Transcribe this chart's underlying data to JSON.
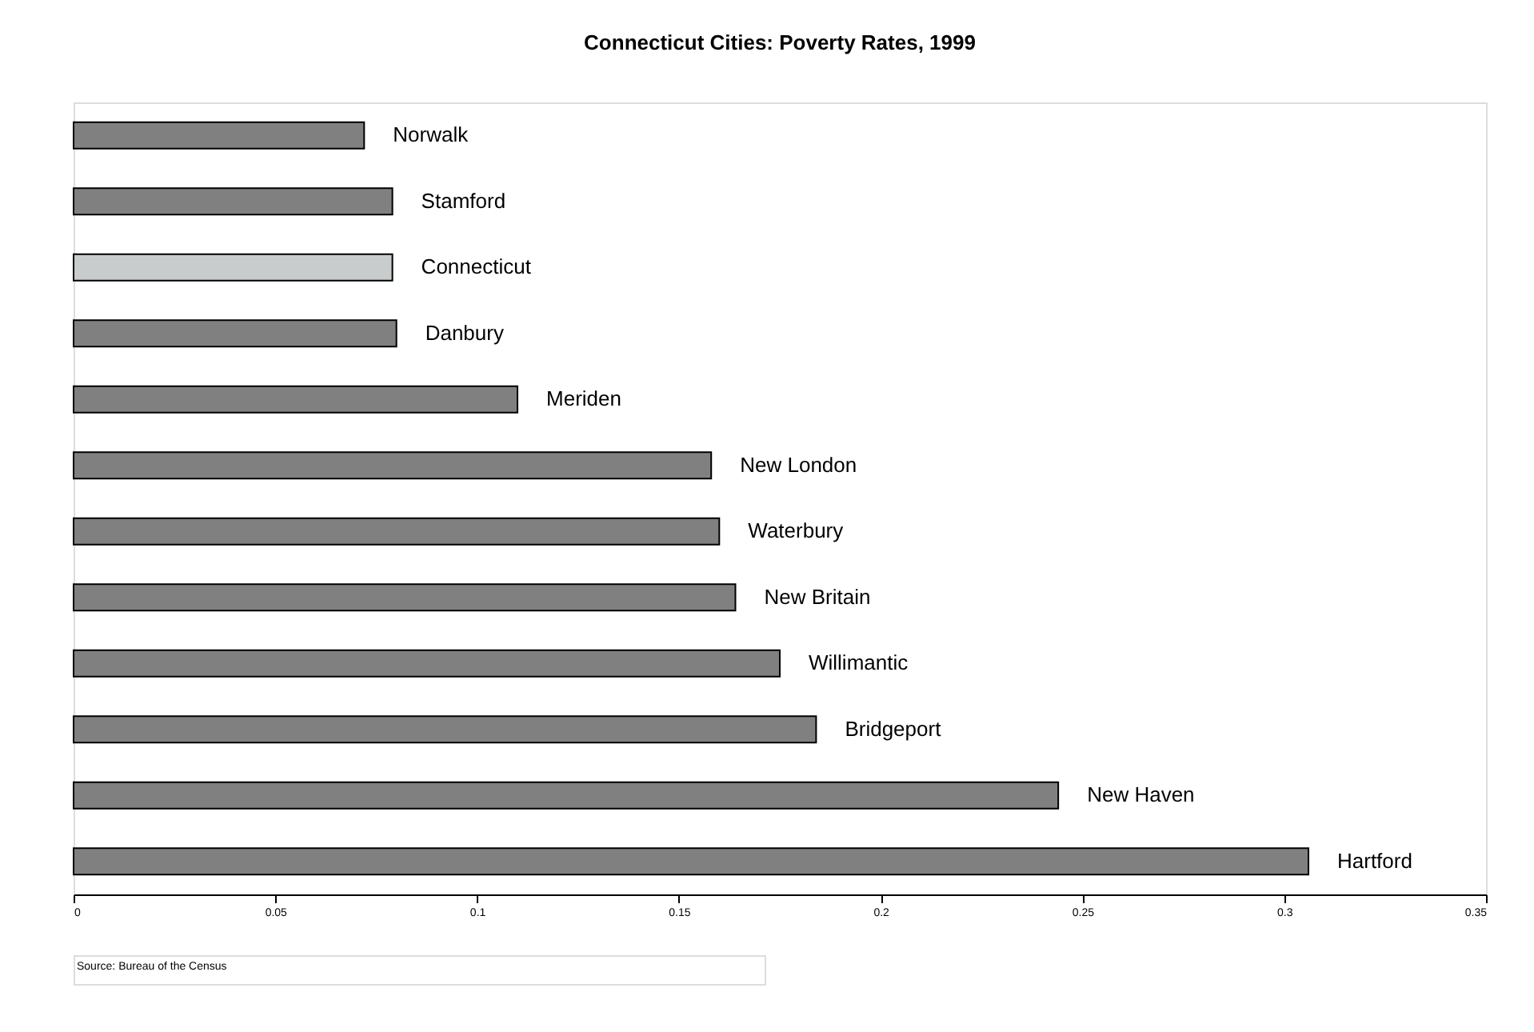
{
  "chart_data": {
    "type": "bar",
    "orientation": "horizontal",
    "title": "Connecticut Cities:  Poverty Rates, 1999",
    "categories": [
      "Norwalk",
      "Stamford",
      "Connecticut",
      "Danbury",
      "Meriden",
      "New London",
      "Waterbury",
      "New Britain",
      "Willimantic",
      "Bridgeport",
      "New Haven",
      "Hartford"
    ],
    "values": [
      0.072,
      0.079,
      0.079,
      0.08,
      0.11,
      0.158,
      0.16,
      0.164,
      0.175,
      0.184,
      0.244,
      0.306
    ],
    "colors": [
      "#808080",
      "#808080",
      "#c8cccc",
      "#808080",
      "#808080",
      "#808080",
      "#808080",
      "#808080",
      "#808080",
      "#808080",
      "#808080",
      "#808080"
    ],
    "xlim": [
      0,
      0.35
    ],
    "xticks": [
      0,
      0.05,
      0.1,
      0.15,
      0.2,
      0.25,
      0.3,
      0.35
    ],
    "grid": false,
    "annotations": [
      "Source: Bureau of the Census"
    ]
  }
}
